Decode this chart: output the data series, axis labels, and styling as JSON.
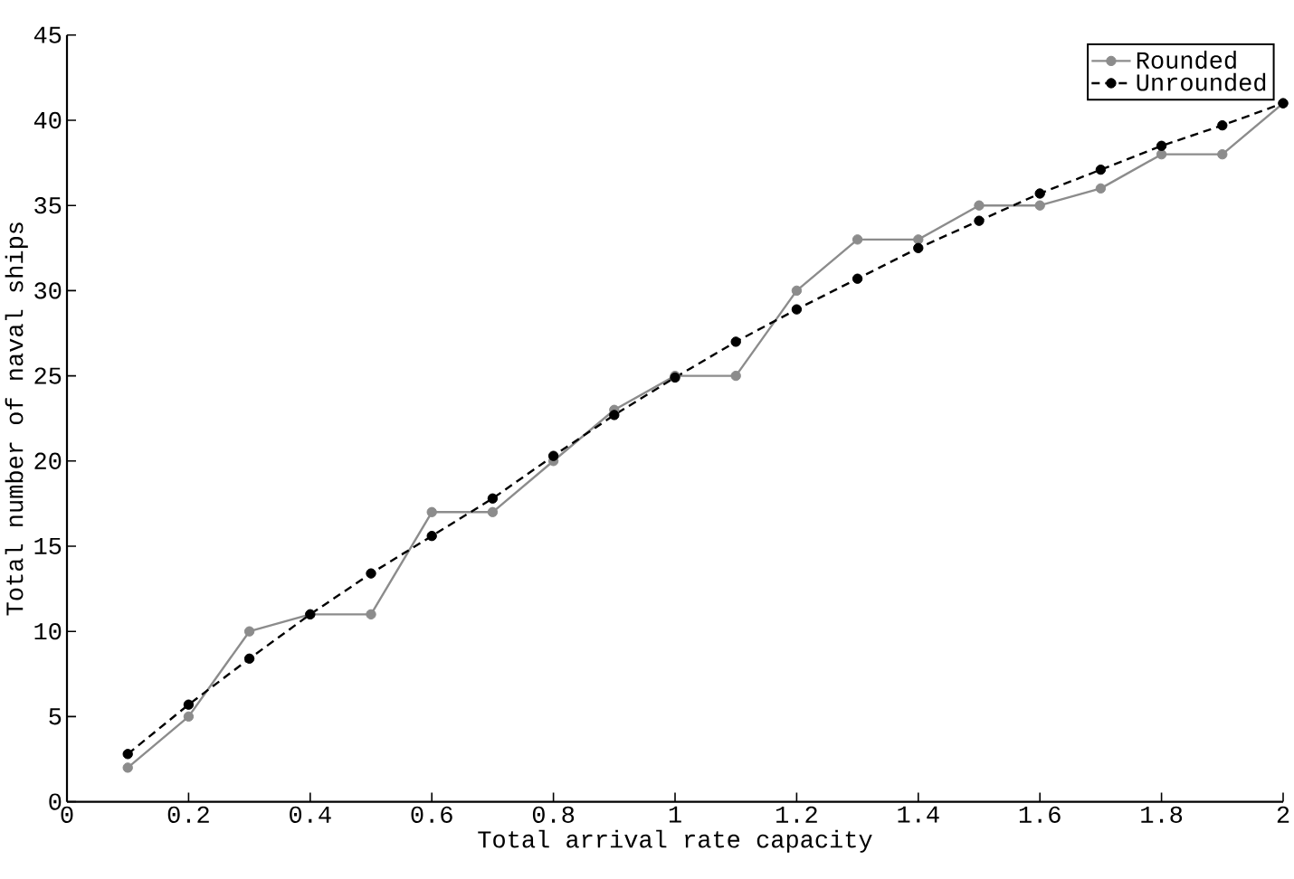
{
  "chart_data": {
    "type": "line",
    "xlabel": "Total arrival rate capacity",
    "ylabel": "Total number of naval ships",
    "x": [
      0.1,
      0.2,
      0.3,
      0.4,
      0.5,
      0.6,
      0.7,
      0.8,
      0.9,
      1.0,
      1.1,
      1.2,
      1.3,
      1.4,
      1.5,
      1.6,
      1.7,
      1.8,
      1.9,
      2.0
    ],
    "series": [
      {
        "name": "Rounded",
        "color": "#8c8c8c",
        "line_style": "solid",
        "values": [
          2,
          5,
          10,
          11,
          11,
          17,
          17,
          20,
          23,
          25,
          25,
          30,
          33,
          33,
          35,
          35,
          36,
          38,
          38,
          41
        ]
      },
      {
        "name": "Unrounded",
        "color": "#000000",
        "line_style": "dashed",
        "values": [
          2.8,
          5.7,
          8.4,
          11.0,
          13.4,
          15.6,
          17.8,
          20.3,
          22.7,
          24.9,
          27.0,
          28.9,
          30.7,
          32.5,
          34.1,
          35.7,
          37.1,
          38.5,
          39.7,
          41.0
        ]
      }
    ],
    "xlim": [
      0,
      2
    ],
    "ylim": [
      0,
      45
    ],
    "xticks": [
      0,
      0.2,
      0.4,
      0.6,
      0.8,
      1,
      1.2,
      1.4,
      1.6,
      1.8,
      2
    ],
    "yticks": [
      0,
      5,
      10,
      15,
      20,
      25,
      30,
      35,
      40,
      45
    ],
    "legend": "top right",
    "marker": "circle"
  }
}
